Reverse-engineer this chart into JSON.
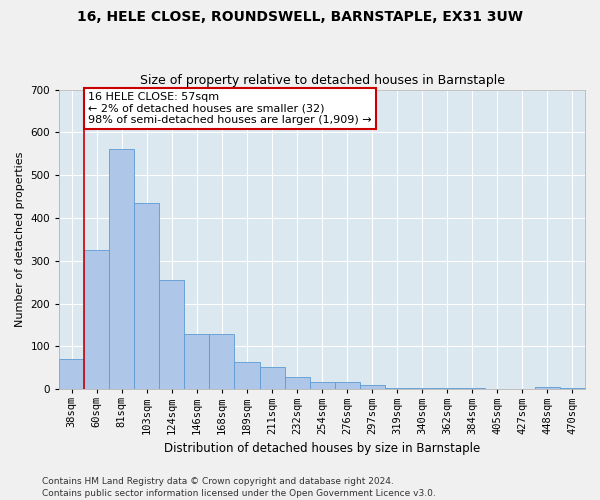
{
  "title": "16, HELE CLOSE, ROUNDSWELL, BARNSTAPLE, EX31 3UW",
  "subtitle": "Size of property relative to detached houses in Barnstaple",
  "xlabel": "Distribution of detached houses by size in Barnstaple",
  "ylabel": "Number of detached properties",
  "categories": [
    "38sqm",
    "60sqm",
    "81sqm",
    "103sqm",
    "124sqm",
    "146sqm",
    "168sqm",
    "189sqm",
    "211sqm",
    "232sqm",
    "254sqm",
    "276sqm",
    "297sqm",
    "319sqm",
    "340sqm",
    "362sqm",
    "384sqm",
    "405sqm",
    "427sqm",
    "448sqm",
    "470sqm"
  ],
  "values": [
    70,
    325,
    560,
    435,
    255,
    128,
    128,
    63,
    52,
    28,
    17,
    18,
    10,
    4,
    4,
    4,
    4,
    0,
    0,
    5,
    4
  ],
  "bar_color": "#aec6e8",
  "bar_edge_color": "#5b9bd5",
  "vline_x_index": 0.5,
  "vline_color": "#cc0000",
  "annotation_text": "16 HELE CLOSE: 57sqm\n← 2% of detached houses are smaller (32)\n98% of semi-detached houses are larger (1,909) →",
  "annotation_box_color": "#ffffff",
  "annotation_box_edge": "#cc0000",
  "ylim": [
    0,
    700
  ],
  "yticks": [
    0,
    100,
    200,
    300,
    400,
    500,
    600,
    700
  ],
  "background_color": "#dce8f0",
  "grid_color": "#ffffff",
  "fig_background": "#f0f0f0",
  "footer": "Contains HM Land Registry data © Crown copyright and database right 2024.\nContains public sector information licensed under the Open Government Licence v3.0.",
  "title_fontsize": 10,
  "subtitle_fontsize": 9,
  "xlabel_fontsize": 8.5,
  "ylabel_fontsize": 8,
  "tick_fontsize": 7.5,
  "annotation_fontsize": 8,
  "footer_fontsize": 6.5
}
